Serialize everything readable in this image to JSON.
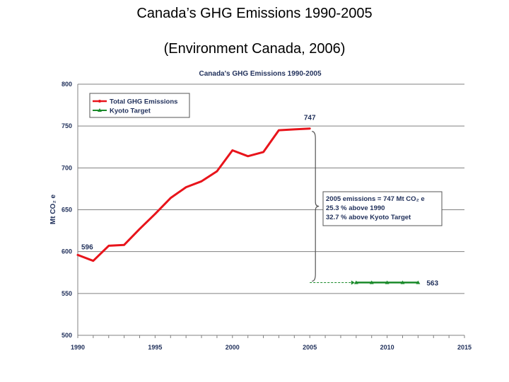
{
  "slide": {
    "title": "Canada’s GHG Emissions 1990-2005",
    "subtitle": "(Environment Canada, 2006)"
  },
  "chart_data": {
    "type": "line",
    "title": "Canada's GHG Emissions 1990-2005",
    "xlabel": "",
    "ylabel": "Mt CO₂ e",
    "xlim": [
      1990,
      2015
    ],
    "ylim": [
      500,
      800
    ],
    "xticks": [
      1990,
      1995,
      2000,
      2005,
      2010,
      2015
    ],
    "yticks": [
      500,
      550,
      600,
      650,
      700,
      750,
      800
    ],
    "grid": true,
    "legend": "top-left",
    "series": [
      {
        "name": "Total GHG Emissions",
        "color": "#e8141b",
        "x": [
          1990,
          1991,
          1992,
          1993,
          1994,
          1995,
          1996,
          1997,
          1998,
          1999,
          2000,
          2001,
          2002,
          2003,
          2004,
          2005
        ],
        "y": [
          596,
          589,
          607,
          608,
          627,
          645,
          664,
          677,
          684,
          696,
          721,
          714,
          719,
          745,
          746,
          747
        ]
      },
      {
        "name": "Kyoto Target",
        "color": "#1a8a2a",
        "x": [
          2008,
          2009,
          2010,
          2011,
          2012
        ],
        "y": [
          563,
          563,
          563,
          563,
          563
        ]
      }
    ],
    "annotations": {
      "start_value": "596",
      "end_value": "747",
      "target_value": "563",
      "callout_lines": [
        "2005 emissions = 747 Mt CO₂ e",
        "25.3 % above 1990",
        "32.7 % above Kyoto Target"
      ]
    }
  }
}
